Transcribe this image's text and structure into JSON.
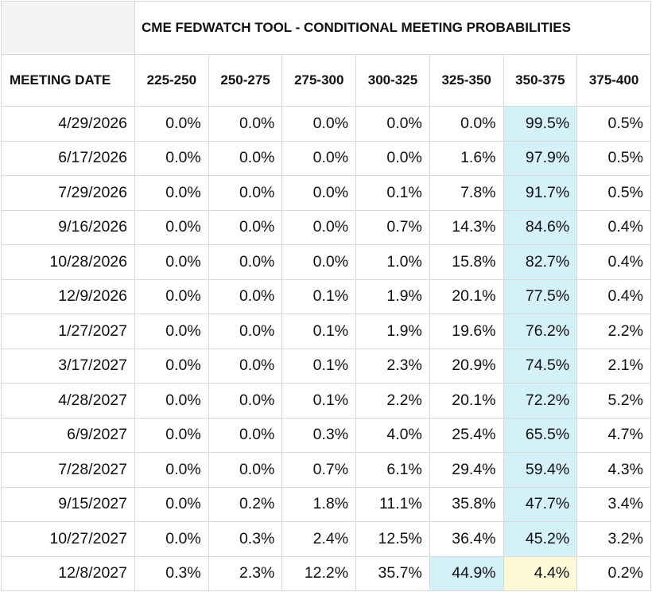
{
  "table": {
    "title": "CME FEDWATCH TOOL - CONDITIONAL MEETING PROBABILITIES",
    "columns": [
      "MEETING DATE",
      "225-250",
      "250-275",
      "275-300",
      "300-325",
      "325-350",
      "350-375",
      "375-400"
    ],
    "rows": [
      [
        "4/29/2026",
        "0.0%",
        "0.0%",
        "0.0%",
        "0.0%",
        "0.0%",
        "99.5%",
        "0.5%"
      ],
      [
        "6/17/2026",
        "0.0%",
        "0.0%",
        "0.0%",
        "0.0%",
        "1.6%",
        "97.9%",
        "0.5%"
      ],
      [
        "7/29/2026",
        "0.0%",
        "0.0%",
        "0.0%",
        "0.1%",
        "7.8%",
        "91.7%",
        "0.5%"
      ],
      [
        "9/16/2026",
        "0.0%",
        "0.0%",
        "0.0%",
        "0.7%",
        "14.3%",
        "84.6%",
        "0.4%"
      ],
      [
        "10/28/2026",
        "0.0%",
        "0.0%",
        "0.0%",
        "1.0%",
        "15.8%",
        "82.7%",
        "0.4%"
      ],
      [
        "12/9/2026",
        "0.0%",
        "0.0%",
        "0.1%",
        "1.9%",
        "20.1%",
        "77.5%",
        "0.4%"
      ],
      [
        "1/27/2027",
        "0.0%",
        "0.0%",
        "0.1%",
        "1.9%",
        "19.6%",
        "76.2%",
        "2.2%"
      ],
      [
        "3/17/2027",
        "0.0%",
        "0.0%",
        "0.1%",
        "2.3%",
        "20.9%",
        "74.5%",
        "2.1%"
      ],
      [
        "4/28/2027",
        "0.0%",
        "0.0%",
        "0.1%",
        "2.2%",
        "20.1%",
        "72.2%",
        "5.2%"
      ],
      [
        "6/9/2027",
        "0.0%",
        "0.0%",
        "0.3%",
        "4.0%",
        "25.4%",
        "65.5%",
        "4.7%"
      ],
      [
        "7/28/2027",
        "0.0%",
        "0.0%",
        "0.7%",
        "6.1%",
        "29.4%",
        "59.4%",
        "4.3%"
      ],
      [
        "9/15/2027",
        "0.0%",
        "0.2%",
        "1.8%",
        "11.1%",
        "35.8%",
        "47.7%",
        "3.4%"
      ],
      [
        "10/27/2027",
        "0.0%",
        "0.3%",
        "2.4%",
        "12.5%",
        "36.4%",
        "45.2%",
        "3.2%"
      ],
      [
        "12/8/2027",
        "0.3%",
        "2.3%",
        "12.2%",
        "35.7%",
        "44.9%",
        "4.4%",
        "0.2%"
      ]
    ],
    "highlights": [
      {
        "row": 0,
        "column": 6,
        "color": "#d4f1fa"
      },
      {
        "row": 1,
        "column": 6,
        "color": "#d4f1fa"
      },
      {
        "row": 2,
        "column": 6,
        "color": "#d4f1fa"
      },
      {
        "row": 3,
        "column": 6,
        "color": "#d4f1fa"
      },
      {
        "row": 4,
        "column": 6,
        "color": "#d4f1fa"
      },
      {
        "row": 5,
        "column": 6,
        "color": "#d4f1fa"
      },
      {
        "row": 6,
        "column": 6,
        "color": "#d4f1fa"
      },
      {
        "row": 7,
        "column": 6,
        "color": "#d4f1fa"
      },
      {
        "row": 8,
        "column": 6,
        "color": "#d4f1fa"
      },
      {
        "row": 9,
        "column": 6,
        "color": "#d4f1fa"
      },
      {
        "row": 10,
        "column": 6,
        "color": "#d4f1fa"
      },
      {
        "row": 11,
        "column": 6,
        "color": "#d4f1fa"
      },
      {
        "row": 12,
        "column": 6,
        "color": "#d4f1fa"
      },
      {
        "row": 13,
        "column": 5,
        "color": "#d4f1fa"
      },
      {
        "row": 13,
        "column": 6,
        "color": "#fbf9d6"
      }
    ]
  }
}
